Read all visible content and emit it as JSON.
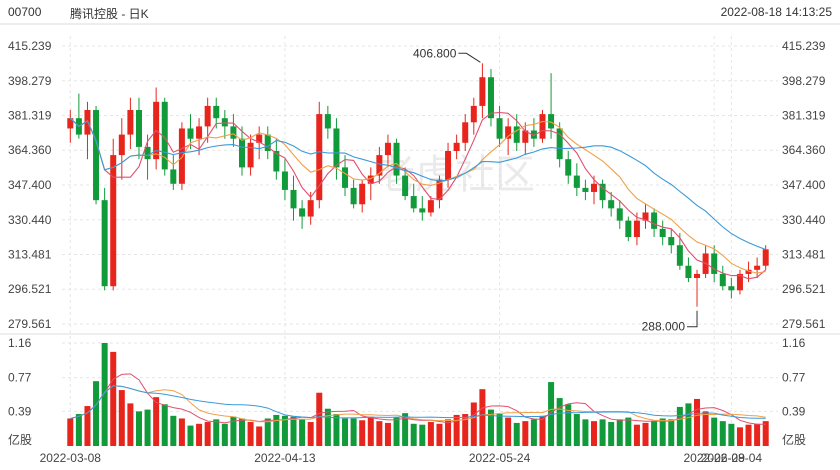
{
  "header": {
    "code": "00700",
    "name": "腾讯控股 - 日K",
    "timestamp": "2022-08-18 14:13:25"
  },
  "watermark": "老虎社区",
  "colors": {
    "up": "#e8251c",
    "down": "#119a3a",
    "ma5": "#e0506f",
    "ma10": "#f0a04a",
    "ma20": "#3a9ad9",
    "grid": "#e6e6e6"
  },
  "chart_data": {
    "type": "candlestick",
    "price_ticks": [
      "415.239",
      "398.279",
      "381.319",
      "364.360",
      "347.400",
      "330.440",
      "313.481",
      "296.521",
      "279.561"
    ],
    "price_ylim": [
      279.561,
      415.239
    ],
    "volume_ticks": [
      "1.16",
      "0.77",
      "0.39"
    ],
    "volume_ylim": [
      0,
      1.16
    ],
    "volume_unit": "亿股",
    "x_ticks": [
      "2022-03-08",
      "2022-04-13",
      "2022-05-24",
      "2022-06-29",
      "2022-08-04"
    ],
    "annotations": {
      "high": "406.800",
      "low": "288.000"
    },
    "candles": [
      [
        375,
        384,
        368,
        380
      ],
      [
        380,
        392,
        370,
        372
      ],
      [
        372,
        388,
        360,
        384
      ],
      [
        384,
        386,
        338,
        340
      ],
      [
        340,
        346,
        296,
        298
      ],
      [
        298,
        370,
        296,
        362
      ],
      [
        362,
        380,
        350,
        372
      ],
      [
        372,
        390,
        365,
        384
      ],
      [
        384,
        390,
        360,
        366
      ],
      [
        366,
        372,
        350,
        360
      ],
      [
        360,
        395,
        355,
        388
      ],
      [
        388,
        390,
        352,
        355
      ],
      [
        355,
        362,
        345,
        348
      ],
      [
        348,
        378,
        345,
        375
      ],
      [
        375,
        382,
        365,
        370
      ],
      [
        370,
        380,
        362,
        376
      ],
      [
        376,
        390,
        368,
        386
      ],
      [
        386,
        390,
        375,
        380
      ],
      [
        380,
        384,
        370,
        376
      ],
      [
        376,
        382,
        366,
        370
      ],
      [
        370,
        376,
        352,
        356
      ],
      [
        356,
        372,
        352,
        368
      ],
      [
        368,
        376,
        360,
        372
      ],
      [
        372,
        376,
        360,
        364
      ],
      [
        364,
        370,
        350,
        354
      ],
      [
        354,
        360,
        340,
        345
      ],
      [
        345,
        352,
        330,
        336
      ],
      [
        336,
        340,
        326,
        332
      ],
      [
        332,
        344,
        328,
        340
      ],
      [
        340,
        388,
        336,
        382
      ],
      [
        382,
        386,
        370,
        375
      ],
      [
        375,
        380,
        350,
        356
      ],
      [
        356,
        362,
        342,
        346
      ],
      [
        346,
        350,
        336,
        338
      ],
      [
        338,
        350,
        334,
        348
      ],
      [
        348,
        356,
        340,
        352
      ],
      [
        352,
        366,
        348,
        362
      ],
      [
        362,
        372,
        356,
        368
      ],
      [
        368,
        370,
        348,
        352
      ],
      [
        352,
        356,
        340,
        342
      ],
      [
        342,
        348,
        334,
        336
      ],
      [
        336,
        342,
        330,
        334
      ],
      [
        334,
        342,
        332,
        340
      ],
      [
        340,
        352,
        336,
        350
      ],
      [
        350,
        368,
        346,
        364
      ],
      [
        364,
        372,
        360,
        368
      ],
      [
        368,
        382,
        364,
        378
      ],
      [
        378,
        390,
        372,
        386
      ],
      [
        386,
        406.8,
        380,
        400
      ],
      [
        400,
        404,
        376,
        380
      ],
      [
        380,
        386,
        366,
        370
      ],
      [
        370,
        380,
        362,
        376
      ],
      [
        376,
        382,
        364,
        368
      ],
      [
        368,
        378,
        362,
        374
      ],
      [
        374,
        380,
        366,
        370
      ],
      [
        370,
        384,
        368,
        382
      ],
      [
        382,
        402,
        370,
        375
      ],
      [
        375,
        378,
        356,
        360
      ],
      [
        360,
        364,
        348,
        352
      ],
      [
        352,
        358,
        342,
        346
      ],
      [
        346,
        350,
        340,
        344
      ],
      [
        344,
        352,
        338,
        348
      ],
      [
        348,
        350,
        336,
        340
      ],
      [
        340,
        344,
        332,
        336
      ],
      [
        336,
        340,
        326,
        330
      ],
      [
        330,
        332,
        320,
        322
      ],
      [
        322,
        334,
        318,
        330
      ],
      [
        330,
        338,
        326,
        334
      ],
      [
        334,
        336,
        322,
        326
      ],
      [
        326,
        330,
        318,
        322
      ],
      [
        322,
        326,
        314,
        318
      ],
      [
        318,
        324,
        306,
        308
      ],
      [
        308,
        312,
        300,
        302
      ],
      [
        302,
        306,
        288,
        304
      ],
      [
        304,
        318,
        302,
        314
      ],
      [
        314,
        318,
        300,
        304
      ],
      [
        304,
        308,
        296,
        298
      ],
      [
        298,
        302,
        292,
        296
      ],
      [
        296,
        306,
        294,
        304
      ],
      [
        304,
        310,
        300,
        306
      ],
      [
        306,
        312,
        302,
        308
      ],
      [
        308,
        318,
        306,
        316
      ]
    ],
    "volumes": [
      0.31,
      0.36,
      0.45,
      0.73,
      1.16,
      1.06,
      0.63,
      0.48,
      0.39,
      0.41,
      0.55,
      0.47,
      0.34,
      0.31,
      0.23,
      0.25,
      0.27,
      0.3,
      0.25,
      0.33,
      0.31,
      0.27,
      0.22,
      0.31,
      0.35,
      0.34,
      0.33,
      0.3,
      0.27,
      0.6,
      0.42,
      0.36,
      0.31,
      0.31,
      0.29,
      0.33,
      0.28,
      0.26,
      0.32,
      0.37,
      0.25,
      0.24,
      0.27,
      0.25,
      0.3,
      0.35,
      0.36,
      0.49,
      0.64,
      0.41,
      0.36,
      0.32,
      0.26,
      0.28,
      0.3,
      0.34,
      0.72,
      0.54,
      0.47,
      0.36,
      0.3,
      0.28,
      0.3,
      0.27,
      0.3,
      0.32,
      0.24,
      0.26,
      0.28,
      0.31,
      0.3,
      0.44,
      0.48,
      0.53,
      0.39,
      0.32,
      0.28,
      0.25,
      0.21,
      0.24,
      0.25,
      0.28
    ]
  }
}
